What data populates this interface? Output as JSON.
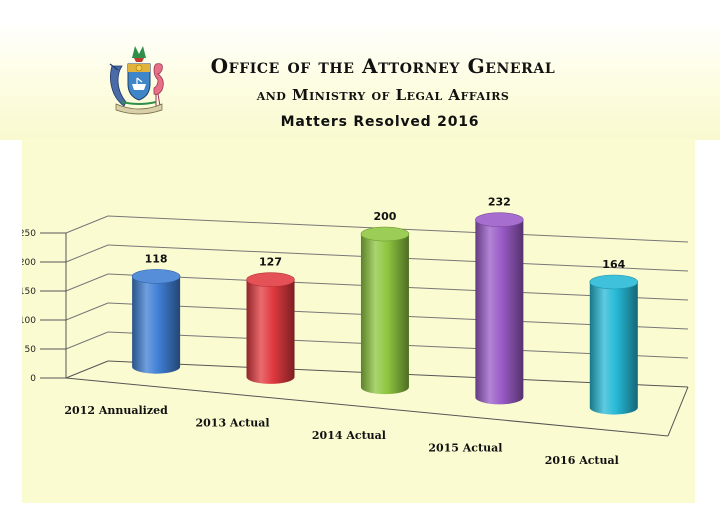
{
  "header": {
    "org_line1": "Office of the Attorney General",
    "org_line2": "and Ministry of Legal Affairs",
    "crest_icon": "bahamas-coat-of-arms"
  },
  "chart_data": {
    "type": "bar",
    "style": "3d-cylinder",
    "title": "Matters Resolved 2016",
    "xlabel": "",
    "ylabel": "",
    "categories": [
      "2012 Annualized",
      "2013 Actual",
      "2014 Actual",
      "2015 Actual",
      "2016  Actual"
    ],
    "values": [
      118,
      127,
      200,
      232,
      164
    ],
    "value_labels": [
      "118",
      "127",
      "200",
      "232",
      "164"
    ],
    "colors": [
      "#3f7fd4",
      "#e0393f",
      "#8ec640",
      "#9a5bc8",
      "#26b9d6"
    ],
    "y_ticks": [
      "0",
      "50",
      "100",
      "150",
      "200",
      "250"
    ],
    "ylim": [
      0,
      250
    ],
    "grid": true,
    "legend": "none"
  }
}
